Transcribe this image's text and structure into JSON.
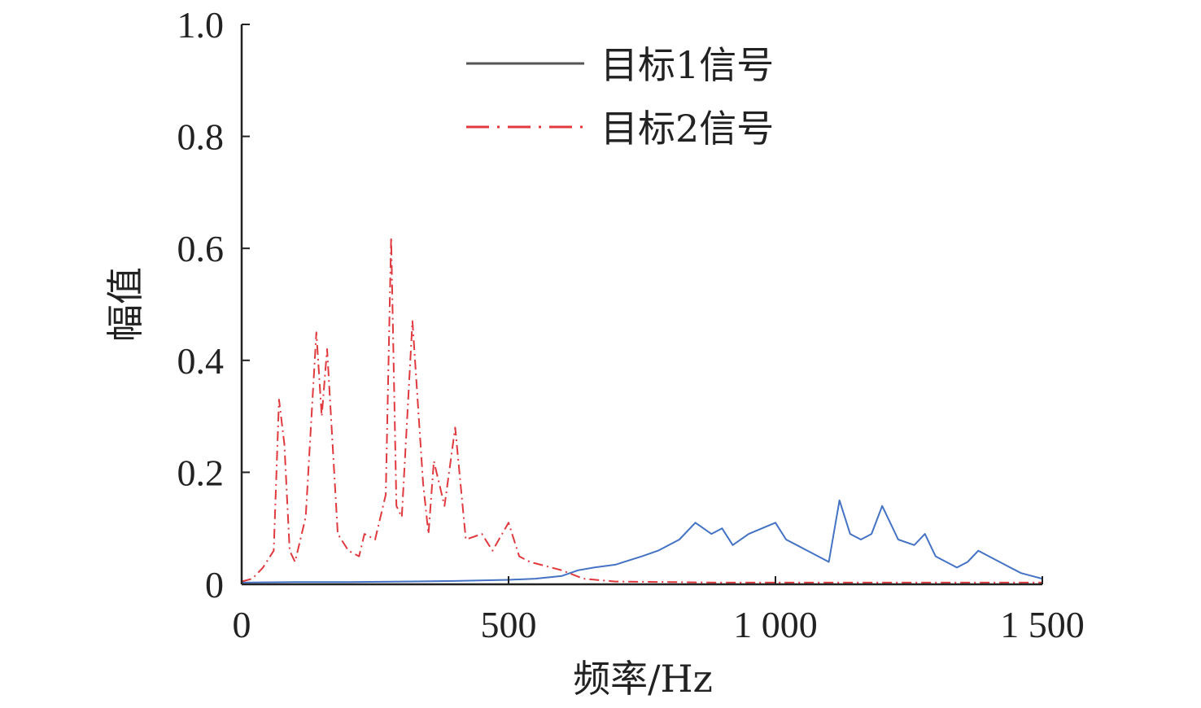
{
  "chart_data": {
    "type": "line",
    "title": "",
    "xlabel": "频率/Hz",
    "ylabel": "幅值",
    "xlim": [
      0,
      1500
    ],
    "ylim": [
      0,
      1.0
    ],
    "xticks": [
      0,
      500,
      1000,
      1500
    ],
    "xtick_labels": [
      "0",
      "500",
      "1 000",
      "1 500"
    ],
    "yticks": [
      0,
      0.2,
      0.4,
      0.6,
      0.8,
      1.0
    ],
    "ytick_labels": [
      "0",
      "0.2",
      "0.4",
      "0.6",
      "0.8",
      "1.0"
    ],
    "grid": false,
    "legend_position": "top-center",
    "series": [
      {
        "name": "目标1信号",
        "color": "#4472c4",
        "style": "solid",
        "x": [
          0,
          100,
          200,
          300,
          400,
          500,
          550,
          600,
          630,
          660,
          700,
          750,
          780,
          820,
          850,
          880,
          900,
          920,
          950,
          1000,
          1020,
          1040,
          1060,
          1080,
          1100,
          1120,
          1140,
          1160,
          1180,
          1200,
          1230,
          1260,
          1280,
          1300,
          1320,
          1340,
          1360,
          1380,
          1400,
          1420,
          1440,
          1460,
          1480,
          1500
        ],
        "y": [
          0.003,
          0.004,
          0.004,
          0.005,
          0.006,
          0.008,
          0.01,
          0.015,
          0.025,
          0.03,
          0.035,
          0.05,
          0.06,
          0.08,
          0.11,
          0.09,
          0.1,
          0.07,
          0.09,
          0.11,
          0.08,
          0.07,
          0.06,
          0.05,
          0.04,
          0.15,
          0.09,
          0.08,
          0.09,
          0.14,
          0.08,
          0.07,
          0.09,
          0.05,
          0.04,
          0.03,
          0.04,
          0.06,
          0.05,
          0.04,
          0.03,
          0.02,
          0.015,
          0.01
        ]
      },
      {
        "name": "目标2信号",
        "color": "#e0393e",
        "style": "dash-dot",
        "x": [
          0,
          20,
          30,
          40,
          60,
          70,
          80,
          90,
          100,
          120,
          140,
          150,
          160,
          180,
          200,
          220,
          230,
          250,
          270,
          280,
          290,
          300,
          320,
          340,
          350,
          360,
          380,
          400,
          420,
          450,
          470,
          500,
          520,
          540,
          560,
          580,
          600,
          640,
          700,
          800,
          900,
          1000,
          1100,
          1200,
          1300,
          1400,
          1500
        ],
        "y": [
          0.005,
          0.01,
          0.02,
          0.03,
          0.06,
          0.33,
          0.25,
          0.06,
          0.04,
          0.12,
          0.45,
          0.3,
          0.42,
          0.09,
          0.06,
          0.05,
          0.09,
          0.08,
          0.16,
          0.62,
          0.14,
          0.12,
          0.47,
          0.18,
          0.09,
          0.22,
          0.14,
          0.28,
          0.08,
          0.09,
          0.06,
          0.11,
          0.05,
          0.04,
          0.035,
          0.03,
          0.025,
          0.01,
          0.005,
          0.004,
          0.003,
          0.003,
          0.003,
          0.003,
          0.003,
          0.003,
          0.003
        ]
      }
    ]
  }
}
